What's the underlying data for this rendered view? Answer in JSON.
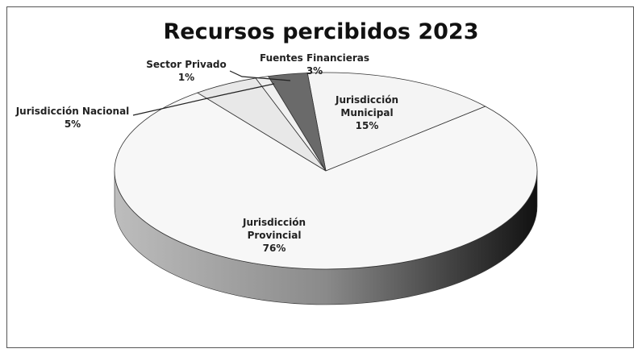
{
  "chart_data": {
    "type": "pie",
    "title": "Recursos percibidos 2023",
    "categories": [
      "Jurisdicción Municipal",
      "Jurisdicción Provincial",
      "Jurisdicción Nacional",
      "Sector Privado",
      "Fuentes Financieras"
    ],
    "values": [
      15,
      76,
      5,
      1,
      3
    ],
    "value_labels": [
      "15%",
      "76%",
      "5%",
      "1%",
      "3%"
    ],
    "colors": [
      "#f4f4f4",
      "#f7f7f7",
      "#e8e8e8",
      "#f0f0f0",
      "#6a6a6a"
    ]
  }
}
